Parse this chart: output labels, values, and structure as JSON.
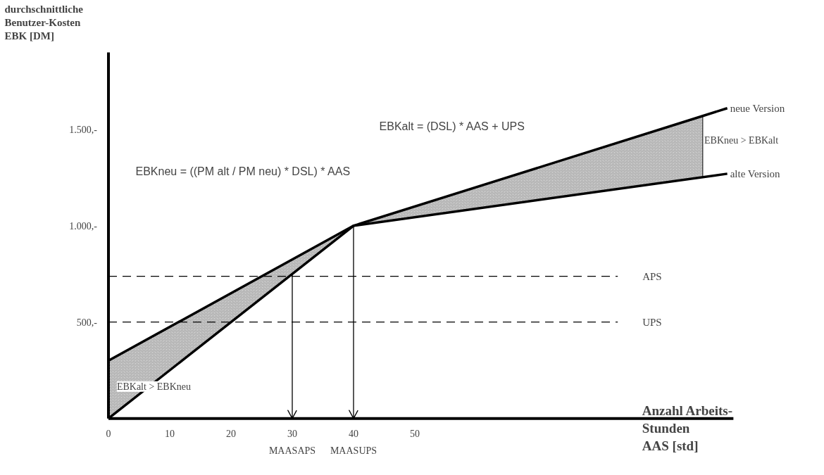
{
  "chart_data": {
    "type": "line",
    "ylabel": "durchschnittliche\nBenutzer-Kosten\nEBK [DM]",
    "xlabel": "Anzahl Arbeits-\nStunden\nAAS [std]",
    "xlim": [
      0,
      102
    ],
    "ylim": [
      0,
      1900
    ],
    "xticks": [
      0,
      10,
      20,
      30,
      40,
      50
    ],
    "yticks": [
      {
        "value": 500,
        "label": "500,-"
      },
      {
        "value": 1000,
        "label": "1.000,-"
      },
      {
        "value": 1500,
        "label": "1.500,-"
      }
    ],
    "series": [
      {
        "name": "neue Version",
        "color": "#000000",
        "x": [
          0,
          40,
          97,
          101
        ],
        "values": [
          0,
          1000,
          1570,
          1610
        ],
        "lower": [
          0,
          1000,
          1252,
          null
        ],
        "upper": [
          300,
          1000,
          1570,
          null
        ]
      },
      {
        "name": "alte Version",
        "color": "#000000",
        "x": [
          0,
          40,
          101
        ],
        "values": [
          300,
          1000,
          1270
        ]
      }
    ],
    "ref_lines": [
      {
        "axis": "y",
        "value": 738,
        "label": "APS",
        "line_style": "dashed",
        "color": "#000000"
      },
      {
        "axis": "y",
        "value": 500,
        "label": "UPS",
        "line_style": "dashed",
        "color": "#000000"
      },
      {
        "axis": "x",
        "value": 30,
        "color": "#000000"
      },
      {
        "axis": "x",
        "value": 40,
        "color": "#000000"
      }
    ],
    "annotations": [
      "EBKalt  = (DSL) * AAS + UPS",
      "EBKneu = ((PM alt  / PM neu) * DSL) * AAS",
      "EBKalt > EBKneu",
      "EBKneu > EBKalt",
      "MAASAPS",
      "MAASUPS"
    ],
    "grid": false,
    "marker": "none",
    "line_style": "solid"
  }
}
